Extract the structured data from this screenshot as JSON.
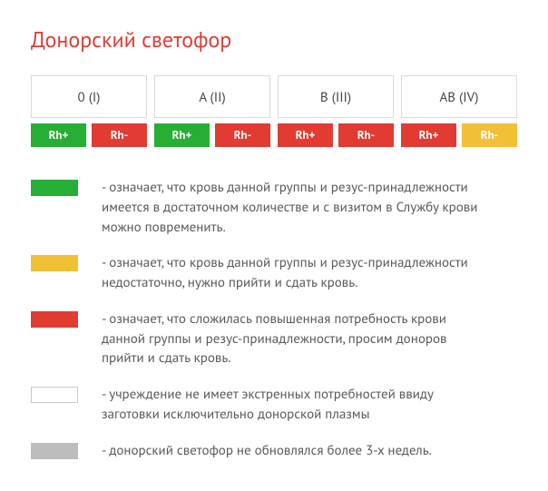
{
  "title": "Донорский светофор",
  "title_color": "#e23b32",
  "colors": {
    "green": "#27ae35",
    "red": "#e23b32",
    "yellow": "#f2c036",
    "white": "#ffffff",
    "grey": "#bdbdbd",
    "border": "#d9d9d9",
    "text": "#585858"
  },
  "groups": [
    {
      "label": "0 (I)",
      "rh_plus_color": "#27ae35",
      "rh_minus_color": "#e23b32"
    },
    {
      "label": "A (II)",
      "rh_plus_color": "#27ae35",
      "rh_minus_color": "#e23b32"
    },
    {
      "label": "B (III)",
      "rh_plus_color": "#e23b32",
      "rh_minus_color": "#e23b32"
    },
    {
      "label": "AB (IV)",
      "rh_plus_color": "#e23b32",
      "rh_minus_color": "#f2c036"
    }
  ],
  "rh_labels": {
    "plus": "Rh+",
    "minus": "Rh-"
  },
  "legend": [
    {
      "color": "#27ae35",
      "outline": false,
      "text": "- означает, что кровь данной группы и резус-принадлежности имеется в достаточном количестве и с визитом в Службу крови можно повременить."
    },
    {
      "color": "#f2c036",
      "outline": false,
      "text": "- означает, что кровь данной группы и резус-принадлежности недостаточно, нужно прийти и сдать кровь."
    },
    {
      "color": "#e23b32",
      "outline": false,
      "text": "- означает, что сложилась повышенная потребность крови данной группы и резус-принадлежности, просим доноров прийти и сдать кровь."
    },
    {
      "color": "#ffffff",
      "outline": true,
      "text": "- учреждение не имеет экстренных потребностей ввиду заготовки исключительно донорской плазмы"
    },
    {
      "color": "#bdbdbd",
      "outline": false,
      "text": "- донорский светофор не обновлялся более 3-х недель."
    }
  ]
}
